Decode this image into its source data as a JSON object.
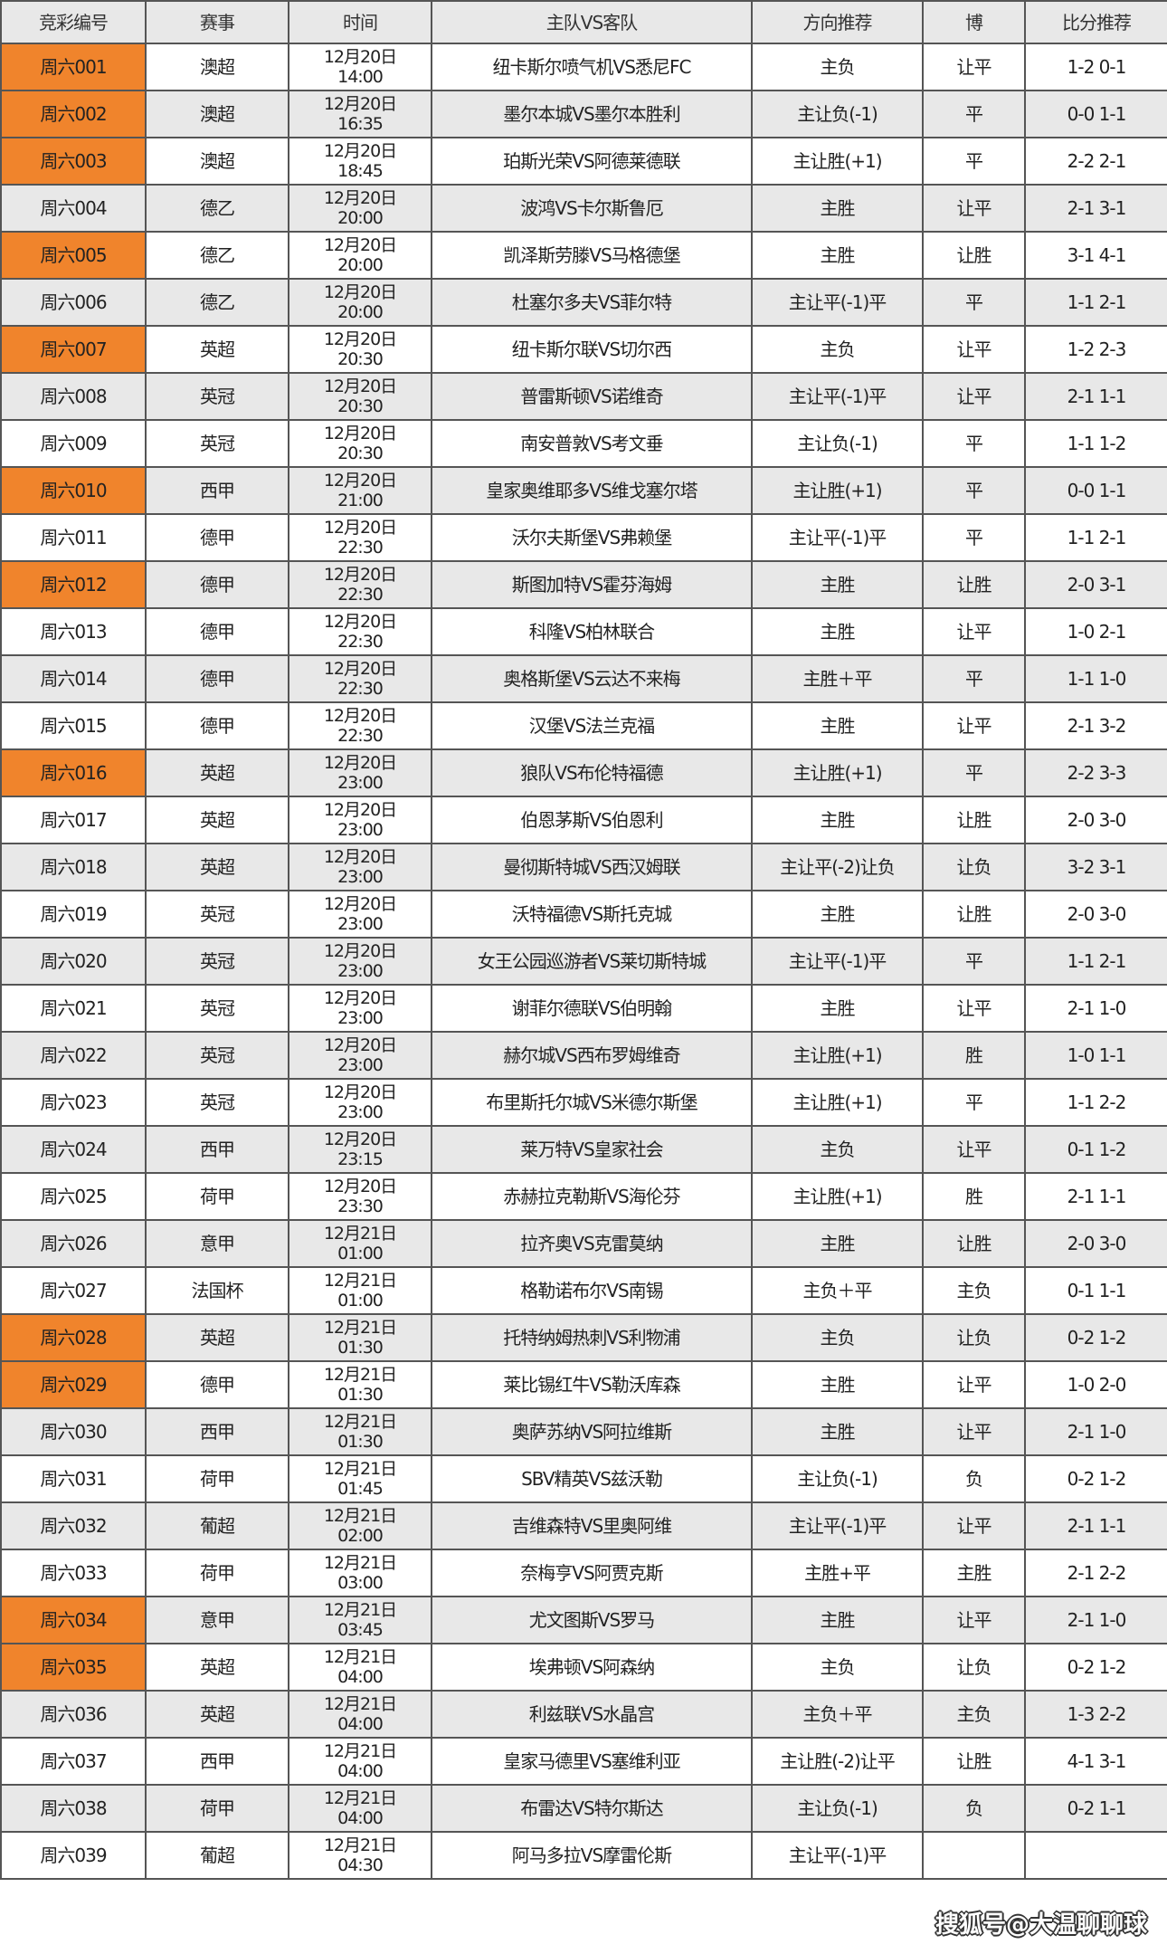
{
  "header": {
    "id": "竞彩编号",
    "league": "赛事",
    "time": "时间",
    "match": "主队VS客队",
    "direction": "方向推荐",
    "bo": "博",
    "score": "比分推荐"
  },
  "colors": {
    "highlight": "#f0842c",
    "row_alt": "#e8e8e8",
    "border": "#555555"
  },
  "rows": [
    {
      "id": "周六001",
      "league": "澳超",
      "date": "12月20日",
      "time": "14:00",
      "match": "纽卡斯尔喷气机VS悉尼FC",
      "direction": "主负",
      "bo": "让平",
      "score": "1-2 0-1",
      "highlight": true
    },
    {
      "id": "周六002",
      "league": "澳超",
      "date": "12月20日",
      "time": "16:35",
      "match": "墨尔本城VS墨尔本胜利",
      "direction": "主让负(-1)",
      "bo": "平",
      "score": "0-0 1-1",
      "highlight": true
    },
    {
      "id": "周六003",
      "league": "澳超",
      "date": "12月20日",
      "time": "18:45",
      "match": "珀斯光荣VS阿德莱德联",
      "direction": "主让胜(+1)",
      "bo": "平",
      "score": "2-2 2-1",
      "highlight": true
    },
    {
      "id": "周六004",
      "league": "德乙",
      "date": "12月20日",
      "time": "20:00",
      "match": "波鸿VS卡尔斯鲁厄",
      "direction": "主胜",
      "bo": "让平",
      "score": "2-1 3-1",
      "highlight": false
    },
    {
      "id": "周六005",
      "league": "德乙",
      "date": "12月20日",
      "time": "20:00",
      "match": "凯泽斯劳滕VS马格德堡",
      "direction": "主胜",
      "bo": "让胜",
      "score": "3-1 4-1",
      "highlight": true
    },
    {
      "id": "周六006",
      "league": "德乙",
      "date": "12月20日",
      "time": "20:00",
      "match": "杜塞尔多夫VS菲尔特",
      "direction": "主让平(-1)平",
      "bo": "平",
      "score": "1-1 2-1",
      "highlight": false
    },
    {
      "id": "周六007",
      "league": "英超",
      "date": "12月20日",
      "time": "20:30",
      "match": "纽卡斯尔联VS切尔西",
      "direction": "主负",
      "bo": "让平",
      "score": "1-2 2-3",
      "highlight": true
    },
    {
      "id": "周六008",
      "league": "英冠",
      "date": "12月20日",
      "time": "20:30",
      "match": "普雷斯顿VS诺维奇",
      "direction": "主让平(-1)平",
      "bo": "让平",
      "score": "2-1 1-1",
      "highlight": false
    },
    {
      "id": "周六009",
      "league": "英冠",
      "date": "12月20日",
      "time": "20:30",
      "match": "南安普敦VS考文垂",
      "direction": "主让负(-1)",
      "bo": "平",
      "score": "1-1 1-2",
      "highlight": false
    },
    {
      "id": "周六010",
      "league": "西甲",
      "date": "12月20日",
      "time": "21:00",
      "match": "皇家奥维耶多VS维戈塞尔塔",
      "direction": "主让胜(+1)",
      "bo": "平",
      "score": "0-0 1-1",
      "highlight": true
    },
    {
      "id": "周六011",
      "league": "德甲",
      "date": "12月20日",
      "time": "22:30",
      "match": "沃尔夫斯堡VS弗赖堡",
      "direction": "主让平(-1)平",
      "bo": "平",
      "score": "1-1 2-1",
      "highlight": false
    },
    {
      "id": "周六012",
      "league": "德甲",
      "date": "12月20日",
      "time": "22:30",
      "match": "斯图加特VS霍芬海姆",
      "direction": "主胜",
      "bo": "让胜",
      "score": "2-0 3-1",
      "highlight": true
    },
    {
      "id": "周六013",
      "league": "德甲",
      "date": "12月20日",
      "time": "22:30",
      "match": "科隆VS柏林联合",
      "direction": "主胜",
      "bo": "让平",
      "score": "1-0 2-1",
      "highlight": false
    },
    {
      "id": "周六014",
      "league": "德甲",
      "date": "12月20日",
      "time": "22:30",
      "match": "奥格斯堡VS云达不来梅",
      "direction": "主胜＋平",
      "bo": "平",
      "score": "1-1 1-0",
      "highlight": false
    },
    {
      "id": "周六015",
      "league": "德甲",
      "date": "12月20日",
      "time": "22:30",
      "match": "汉堡VS法兰克福",
      "direction": "主胜",
      "bo": "让平",
      "score": "2-1 3-2",
      "highlight": false
    },
    {
      "id": "周六016",
      "league": "英超",
      "date": "12月20日",
      "time": "23:00",
      "match": "狼队VS布伦特福德",
      "direction": "主让胜(+1)",
      "bo": "平",
      "score": "2-2 3-3",
      "highlight": true
    },
    {
      "id": "周六017",
      "league": "英超",
      "date": "12月20日",
      "time": "23:00",
      "match": "伯恩茅斯VS伯恩利",
      "direction": "主胜",
      "bo": "让胜",
      "score": "2-0 3-0",
      "highlight": false
    },
    {
      "id": "周六018",
      "league": "英超",
      "date": "12月20日",
      "time": "23:00",
      "match": "曼彻斯特城VS西汉姆联",
      "direction": "主让平(-2)让负",
      "bo": "让负",
      "score": "3-2 3-1",
      "highlight": false
    },
    {
      "id": "周六019",
      "league": "英冠",
      "date": "12月20日",
      "time": "23:00",
      "match": "沃特福德VS斯托克城",
      "direction": "主胜",
      "bo": "让胜",
      "score": "2-0 3-0",
      "highlight": false
    },
    {
      "id": "周六020",
      "league": "英冠",
      "date": "12月20日",
      "time": "23:00",
      "match": "女王公园巡游者VS莱切斯特城",
      "direction": "主让平(-1)平",
      "bo": "平",
      "score": "1-1 2-1",
      "highlight": false
    },
    {
      "id": "周六021",
      "league": "英冠",
      "date": "12月20日",
      "time": "23:00",
      "match": "谢菲尔德联VS伯明翰",
      "direction": "主胜",
      "bo": "让平",
      "score": "2-1 1-0",
      "highlight": false
    },
    {
      "id": "周六022",
      "league": "英冠",
      "date": "12月20日",
      "time": "23:00",
      "match": "赫尔城VS西布罗姆维奇",
      "direction": "主让胜(+1)",
      "bo": "胜",
      "score": "1-0 1-1",
      "highlight": false
    },
    {
      "id": "周六023",
      "league": "英冠",
      "date": "12月20日",
      "time": "23:00",
      "match": "布里斯托尔城VS米德尔斯堡",
      "direction": "主让胜(+1)",
      "bo": "平",
      "score": "1-1 2-2",
      "highlight": false
    },
    {
      "id": "周六024",
      "league": "西甲",
      "date": "12月20日",
      "time": "23:15",
      "match": "莱万特VS皇家社会",
      "direction": "主负",
      "bo": "让平",
      "score": "0-1 1-2",
      "highlight": false
    },
    {
      "id": "周六025",
      "league": "荷甲",
      "date": "12月20日",
      "time": "23:30",
      "match": "赤赫拉克勒斯VS海伦芬",
      "direction": "主让胜(+1)",
      "bo": "胜",
      "score": "2-1 1-1",
      "highlight": false
    },
    {
      "id": "周六026",
      "league": "意甲",
      "date": "12月21日",
      "time": "01:00",
      "match": "拉齐奥VS克雷莫纳",
      "direction": "主胜",
      "bo": "让胜",
      "score": "2-0 3-0",
      "highlight": false
    },
    {
      "id": "周六027",
      "league": "法国杯",
      "date": "12月21日",
      "time": "01:00",
      "match": "格勒诺布尔VS南锡",
      "direction": "主负＋平",
      "bo": "主负",
      "score": "0-1 1-1",
      "highlight": false
    },
    {
      "id": "周六028",
      "league": "英超",
      "date": "12月21日",
      "time": "01:30",
      "match": "托特纳姆热刺VS利物浦",
      "direction": "主负",
      "bo": "让负",
      "score": "0-2 1-2",
      "highlight": true
    },
    {
      "id": "周六029",
      "league": "德甲",
      "date": "12月21日",
      "time": "01:30",
      "match": "莱比锡红牛VS勒沃库森",
      "direction": "主胜",
      "bo": "让平",
      "score": "1-0 2-0",
      "highlight": true
    },
    {
      "id": "周六030",
      "league": "西甲",
      "date": "12月21日",
      "time": "01:30",
      "match": "奥萨苏纳VS阿拉维斯",
      "direction": "主胜",
      "bo": "让平",
      "score": "2-1 1-0",
      "highlight": false
    },
    {
      "id": "周六031",
      "league": "荷甲",
      "date": "12月21日",
      "time": "01:45",
      "match": "SBV精英VS兹沃勒",
      "direction": "主让负(-1)",
      "bo": "负",
      "score": "0-2 1-2",
      "highlight": false
    },
    {
      "id": "周六032",
      "league": "葡超",
      "date": "12月21日",
      "time": "02:00",
      "match": "吉维森特VS里奥阿维",
      "direction": "主让平(-1)平",
      "bo": "让平",
      "score": "2-1 1-1",
      "highlight": false
    },
    {
      "id": "周六033",
      "league": "荷甲",
      "date": "12月21日",
      "time": "03:00",
      "match": "奈梅亨VS阿贾克斯",
      "direction": "主胜+平",
      "bo": "主胜",
      "score": "2-1 2-2",
      "highlight": false
    },
    {
      "id": "周六034",
      "league": "意甲",
      "date": "12月21日",
      "time": "03:45",
      "match": "尤文图斯VS罗马",
      "direction": "主胜",
      "bo": "让平",
      "score": "2-1 1-0",
      "highlight": true
    },
    {
      "id": "周六035",
      "league": "英超",
      "date": "12月21日",
      "time": "04:00",
      "match": "埃弗顿VS阿森纳",
      "direction": "主负",
      "bo": "让负",
      "score": "0-2 1-2",
      "highlight": true
    },
    {
      "id": "周六036",
      "league": "英超",
      "date": "12月21日",
      "time": "04:00",
      "match": "利兹联VS水晶宫",
      "direction": "主负＋平",
      "bo": "主负",
      "score": "1-3 2-2",
      "highlight": false
    },
    {
      "id": "周六037",
      "league": "西甲",
      "date": "12月21日",
      "time": "04:00",
      "match": "皇家马德里VS塞维利亚",
      "direction": "主让胜(-2)让平",
      "bo": "让胜",
      "score": "4-1 3-1",
      "highlight": false
    },
    {
      "id": "周六038",
      "league": "荷甲",
      "date": "12月21日",
      "time": "04:00",
      "match": "布雷达VS特尔斯达",
      "direction": "主让负(-1)",
      "bo": "负",
      "score": "0-2 1-1",
      "highlight": false
    },
    {
      "id": "周六039",
      "league": "葡超",
      "date": "12月21日",
      "time": "04:30",
      "match": "阿马多拉VS摩雷伦斯",
      "direction": "主让平(-1)平",
      "bo": "",
      "score": "",
      "highlight": false
    }
  ],
  "watermark": "搜狐号@大温聊聊球"
}
